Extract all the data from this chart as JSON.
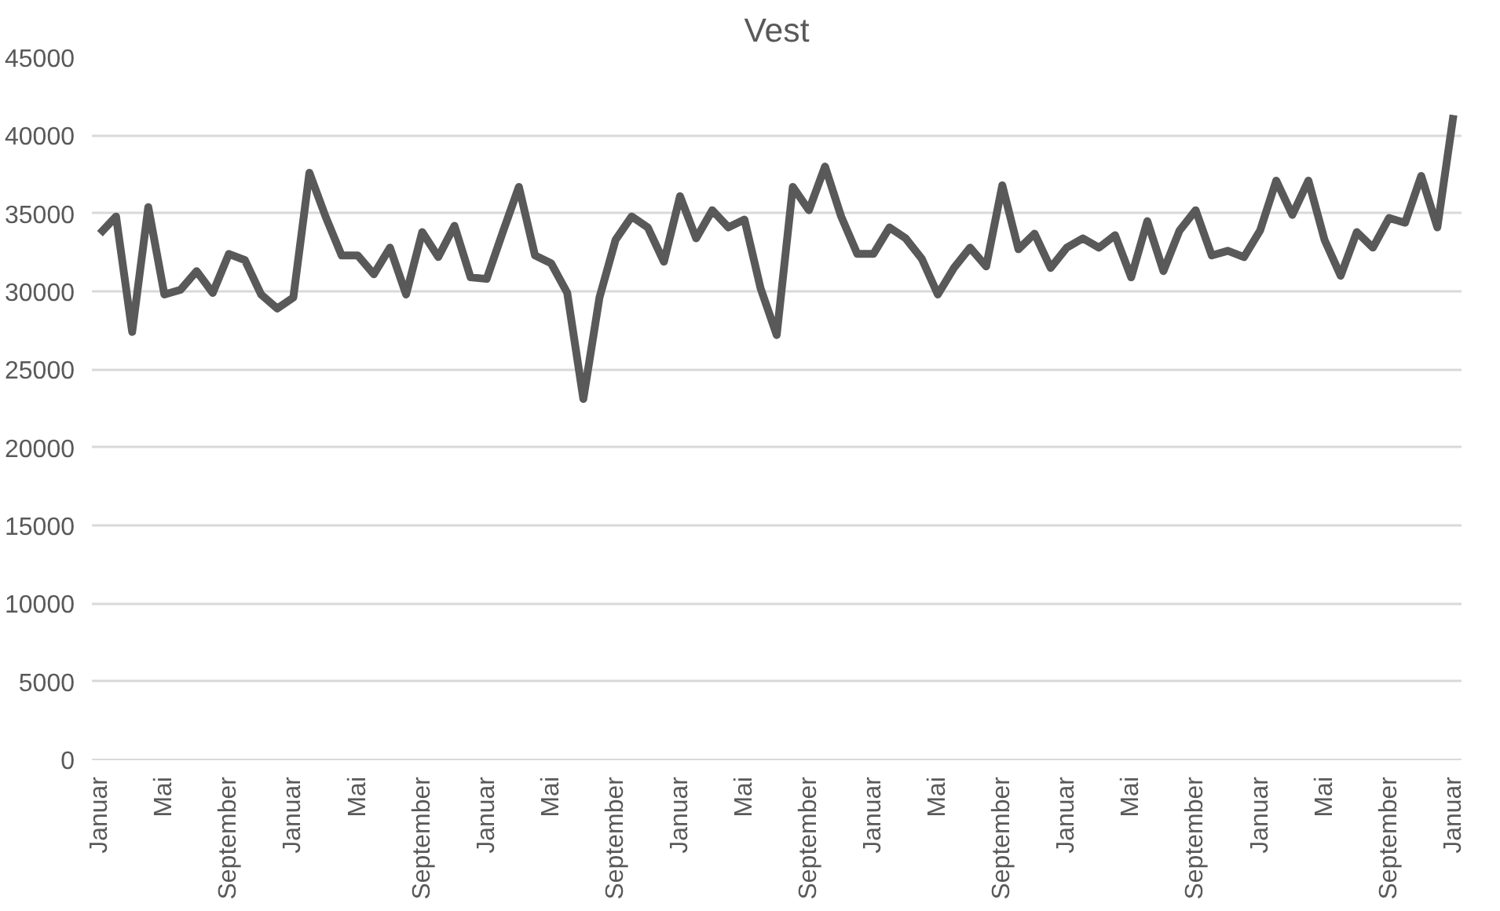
{
  "chart_data": {
    "type": "line",
    "title": "Vest",
    "categories": [
      "Januar",
      null,
      null,
      null,
      "Mai",
      null,
      null,
      null,
      "September",
      null,
      null,
      null,
      "Januar",
      null,
      null,
      null,
      "Mai",
      null,
      null,
      null,
      "September",
      null,
      null,
      null,
      "Januar",
      null,
      null,
      null,
      "Mai",
      null,
      null,
      null,
      "September",
      null,
      null,
      null,
      "Januar",
      null,
      null,
      null,
      "Mai",
      null,
      null,
      null,
      "September",
      null,
      null,
      null,
      "Januar",
      null,
      null,
      null,
      "Mai",
      null,
      null,
      null,
      "September",
      null,
      null,
      null,
      "Januar",
      null,
      null,
      null,
      "Mai",
      null,
      null,
      null,
      "September",
      null,
      null,
      null,
      "Januar",
      null,
      null,
      null,
      "Mai",
      null,
      null,
      null,
      "September",
      null,
      null,
      null,
      "Januar"
    ],
    "series": [
      {
        "color": "#595959",
        "values": [
          33700,
          34800,
          27400,
          35400,
          29800,
          30100,
          31300,
          29900,
          32400,
          32000,
          29800,
          28900,
          29600,
          37600,
          34800,
          32300,
          32300,
          31100,
          32800,
          29800,
          33800,
          32200,
          34200,
          30900,
          30800,
          33800,
          36700,
          32300,
          31800,
          29900,
          23100,
          29600,
          33300,
          34800,
          34100,
          31900,
          36100,
          33400,
          35200,
          34100,
          34600,
          30200,
          27200,
          36700,
          35200,
          38000,
          34800,
          32400,
          32400,
          34100,
          33400,
          32100,
          29800,
          31500,
          32800,
          31600,
          36800,
          32700,
          33700,
          31500,
          32800,
          33400,
          32800,
          33600,
          30900,
          34500,
          31300,
          33900,
          35200,
          32300,
          32600,
          32200,
          33900,
          37100,
          34900,
          37100,
          33300,
          31000,
          33800,
          32800,
          34700,
          34400,
          37400,
          34100,
          41300
        ]
      }
    ],
    "ylim": [
      0,
      45000
    ],
    "yticks": [
      0,
      5000,
      10000,
      15000,
      20000,
      25000,
      30000,
      35000,
      40000,
      45000
    ],
    "grid": "y",
    "marker": "none",
    "line_style": "solid"
  }
}
